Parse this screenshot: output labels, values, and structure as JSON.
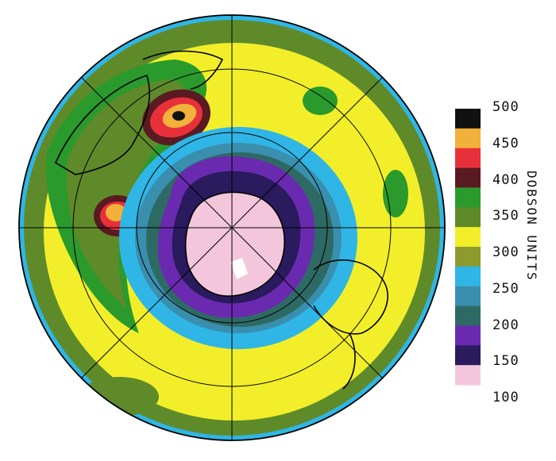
{
  "legend": {
    "title": "DOBSON UNITS",
    "labels": [
      "500",
      "450",
      "400",
      "350",
      "300",
      "250",
      "200",
      "150",
      "100"
    ],
    "bands": [
      "#111111",
      "#f2b13a",
      "#e8303a",
      "#5a1a22",
      "#2a9a2c",
      "#5f8a2a",
      "#f2ef2a",
      "#8c9a2e",
      "#2fb6e6",
      "#3a8fae",
      "#2e6a64",
      "#6a2ab0",
      "#2a1a5e",
      "#f4c6dc"
    ]
  },
  "map": {
    "projection": "south-polar-orthographic",
    "colors": {
      "pink": "#f4c6dc",
      "darkpurple": "#2a1a5e",
      "purple": "#6a2ab0",
      "teal": "#2e6a64",
      "steel": "#3a8fae",
      "cyan": "#2fb6e6",
      "olive": "#8c9a2e",
      "yellow": "#f2ef2a",
      "darkgreen": "#5f8a2a",
      "green": "#2a9a2c",
      "maroon": "#5a1a22",
      "red": "#e8303a",
      "orange": "#f2b13a",
      "black": "#111111"
    }
  }
}
